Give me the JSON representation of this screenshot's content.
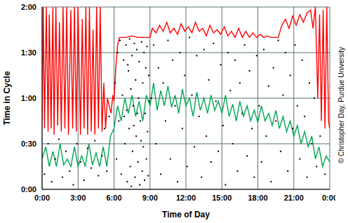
{
  "chart_data": {
    "type": "scatter",
    "x_label": "Time of Day",
    "y_label": "Time in Cycle",
    "annotation": "© Christopher Day, Purdue University",
    "xlim": [
      0,
      24
    ],
    "xticks": [
      {
        "value": 0,
        "label": "0:00"
      },
      {
        "value": 3,
        "label": "3:00"
      },
      {
        "value": 6,
        "label": "6:00"
      },
      {
        "value": 9,
        "label": "9:00"
      },
      {
        "value": 12,
        "label": "12:00"
      },
      {
        "value": 15,
        "label": "15:00"
      },
      {
        "value": 18,
        "label": "18:00"
      },
      {
        "value": 21,
        "label": "21:00"
      },
      {
        "value": 24,
        "label": "0:00"
      }
    ],
    "ylim": [
      0,
      120
    ],
    "yticks": [
      {
        "value": 0,
        "label": "0:00"
      },
      {
        "value": 30,
        "label": "0:30"
      },
      {
        "value": 60,
        "label": "1:00"
      },
      {
        "value": 90,
        "label": "1:30"
      },
      {
        "value": 120,
        "label": "2:00"
      }
    ],
    "grid": true,
    "series": [
      {
        "type": "scatter",
        "color": "#000000",
        "marker": "square",
        "x": [
          0.2,
          0.5,
          0.8,
          1.1,
          1.4,
          1.7,
          2.0,
          2.3,
          2.6,
          2.9,
          3.2,
          3.5,
          3.8,
          4.1,
          4.4,
          4.7,
          5.0,
          5.2,
          5.4,
          5.6,
          6.1,
          6.2,
          6.3,
          6.4,
          6.5,
          6.6,
          6.7,
          6.8,
          6.9,
          7.0,
          7.05,
          7.1,
          7.2,
          7.25,
          7.3,
          7.35,
          7.4,
          7.5,
          7.55,
          7.6,
          7.7,
          7.75,
          7.8,
          7.85,
          7.9,
          8.0,
          8.05,
          8.1,
          8.15,
          8.2,
          8.3,
          8.35,
          8.4,
          8.45,
          8.5,
          8.55,
          8.6,
          8.65,
          8.7,
          8.75,
          8.8,
          8.85,
          8.9,
          8.95,
          7.45,
          7.95,
          8.25,
          6.85,
          7.15,
          7.65,
          9.1,
          9.3,
          9.5,
          9.7,
          9.9,
          10.1,
          10.3,
          10.5,
          10.7,
          10.9,
          11.1,
          11.3,
          11.5,
          11.7,
          11.9,
          12.1,
          12.3,
          12.5,
          12.7,
          12.9,
          13.1,
          13.3,
          13.5,
          13.7,
          13.9,
          14.1,
          14.3,
          14.5,
          14.7,
          14.9,
          15.1,
          15.3,
          15.5,
          15.7,
          15.9,
          16.1,
          16.3,
          16.5,
          16.7,
          16.9,
          17.1,
          17.3,
          17.5,
          17.7,
          17.9,
          18.1,
          18.3,
          18.5,
          18.7,
          18.9,
          19.1,
          19.3,
          19.5,
          19.7,
          19.9,
          20.1,
          20.3,
          20.5,
          20.7,
          20.9,
          21.1,
          21.3,
          21.5,
          21.7,
          21.9,
          22.1,
          22.3,
          22.5,
          22.7,
          22.9,
          23.2,
          23.6
        ],
        "values": [
          10,
          30,
          5,
          20,
          33,
          8,
          25,
          12,
          3,
          30,
          18,
          6,
          27,
          14,
          32,
          9,
          22,
          40,
          12,
          48,
          70,
          20,
          90,
          45,
          98,
          10,
          62,
          85,
          30,
          95,
          52,
          5,
          78,
          40,
          99,
          15,
          66,
          88,
          25,
          55,
          96,
          8,
          72,
          35,
          92,
          18,
          60,
          84,
          3,
          45,
          97,
          12,
          70,
          28,
          90,
          6,
          50,
          80,
          20,
          94,
          38,
          9,
          75,
          58,
          2,
          50,
          32,
          48,
          82,
          42,
          60,
          95,
          30,
          80,
          10,
          70,
          45,
          98,
          20,
          85,
          55,
          5,
          90,
          40,
          75,
          15,
          100,
          62,
          28,
          88,
          48,
          8,
          92,
          35,
          72,
          18,
          96,
          58,
          25,
          82,
          42,
          3,
          90,
          65,
          30,
          85,
          12,
          70,
          50,
          95,
          22,
          78,
          40,
          8,
          88,
          55,
          18,
          92,
          35,
          68,
          5,
          80,
          45,
          98,
          25,
          62,
          90,
          12,
          75,
          40,
          95,
          55,
          20,
          85,
          48,
          8,
          70,
          30,
          60,
          15,
          35,
          10
        ]
      },
      {
        "type": "line",
        "color": "#ff0000",
        "x": [
          0.0,
          0.1,
          0.2,
          0.35,
          0.5,
          0.6,
          0.75,
          0.9,
          1.0,
          1.15,
          1.3,
          1.45,
          1.6,
          1.75,
          1.9,
          2.05,
          2.2,
          2.4,
          2.55,
          2.7,
          2.85,
          3.0,
          3.2,
          3.35,
          3.5,
          3.65,
          3.8,
          3.95,
          4.1,
          4.25,
          4.4,
          4.55,
          4.7,
          4.85,
          5.0,
          5.15,
          5.3,
          5.45,
          5.6,
          5.75,
          5.9,
          6.0,
          6.15,
          6.3,
          6.45,
          6.6,
          7.0,
          7.5,
          8.0,
          8.5,
          9.0,
          9.2,
          9.5,
          9.8,
          10.1,
          10.4,
          10.7,
          11.0,
          11.3,
          11.6,
          11.9,
          12.2,
          12.5,
          12.8,
          13.1,
          13.4,
          13.7,
          14.0,
          14.3,
          14.6,
          14.9,
          15.2,
          15.5,
          15.8,
          16.1,
          16.4,
          16.7,
          17.0,
          17.3,
          17.6,
          17.9,
          18.2,
          18.5,
          18.8,
          19.1,
          19.4,
          19.7,
          20.0,
          20.3,
          20.6,
          20.9,
          21.2,
          21.5,
          21.8,
          22.1,
          22.4,
          22.6,
          22.8,
          23.0,
          23.15,
          23.3,
          23.45,
          23.6,
          23.75,
          23.9,
          24.0
        ],
        "values": [
          45,
          120,
          40,
          120,
          38,
          115,
          40,
          120,
          36,
          120,
          42,
          110,
          38,
          120,
          40,
          120,
          36,
          118,
          40,
          120,
          38,
          120,
          36,
          112,
          40,
          120,
          36,
          120,
          38,
          105,
          36,
          120,
          40,
          120,
          38,
          70,
          40,
          60,
          55,
          50,
          62,
          58,
          80,
          95,
          100,
          100,
          100,
          101,
          100,
          100,
          100,
          106,
          103,
          108,
          104,
          110,
          103,
          106,
          102,
          109,
          104,
          107,
          103,
          110,
          104,
          106,
          101,
          108,
          103,
          105,
          102,
          107,
          101,
          104,
          100,
          106,
          100,
          104,
          100,
          103,
          100,
          102,
          100,
          101,
          100,
          100,
          100,
          108,
          112,
          106,
          114,
          108,
          115,
          110,
          116,
          118,
          106,
          120,
          60,
          115,
          45,
          118,
          40,
          120,
          45,
          40
        ]
      },
      {
        "type": "line",
        "color": "#00a651",
        "x": [
          0.0,
          0.3,
          0.6,
          0.9,
          1.2,
          1.5,
          1.8,
          2.1,
          2.4,
          2.7,
          3.0,
          3.3,
          3.6,
          3.9,
          4.2,
          4.5,
          4.8,
          5.1,
          5.4,
          5.7,
          6.0,
          6.3,
          6.6,
          6.9,
          7.2,
          7.5,
          7.8,
          8.1,
          8.4,
          8.7,
          9.0,
          9.3,
          9.6,
          9.9,
          10.2,
          10.5,
          10.8,
          11.1,
          11.4,
          11.7,
          12.0,
          12.3,
          12.6,
          12.9,
          13.2,
          13.5,
          13.8,
          14.1,
          14.4,
          14.7,
          15.0,
          15.3,
          15.6,
          15.9,
          16.2,
          16.5,
          16.8,
          17.1,
          17.4,
          17.7,
          18.0,
          18.3,
          18.6,
          18.9,
          19.2,
          19.5,
          19.8,
          20.1,
          20.4,
          20.7,
          21.0,
          21.3,
          21.6,
          21.9,
          22.2,
          22.5,
          22.8,
          23.1,
          23.4,
          23.7,
          24.0
        ],
        "values": [
          20,
          28,
          15,
          25,
          15,
          30,
          16,
          20,
          15,
          28,
          15,
          22,
          15,
          30,
          16,
          24,
          15,
          28,
          15,
          35,
          40,
          55,
          45,
          60,
          50,
          62,
          48,
          58,
          45,
          62,
          55,
          70,
          52,
          65,
          55,
          68,
          54,
          62,
          50,
          66,
          55,
          60,
          48,
          64,
          52,
          60,
          50,
          62,
          52,
          58,
          50,
          62,
          48,
          56,
          45,
          58,
          48,
          55,
          45,
          52,
          44,
          55,
          45,
          50,
          42,
          52,
          40,
          48,
          38,
          45,
          35,
          42,
          30,
          38,
          28,
          35,
          20,
          28,
          15,
          22,
          18
        ]
      }
    ]
  }
}
